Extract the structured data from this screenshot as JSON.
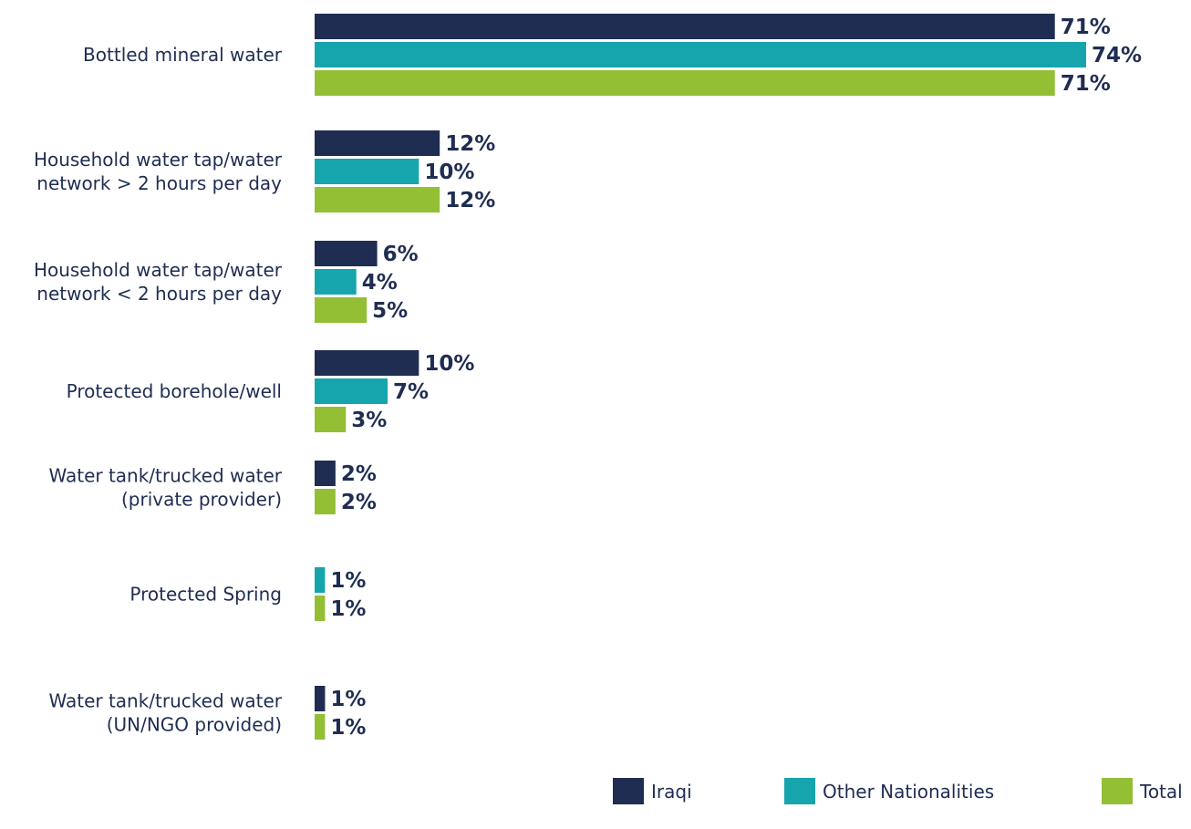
{
  "chart_data": {
    "type": "bar",
    "orientation": "horizontal",
    "categories": [
      [
        "Bottled mineral water"
      ],
      [
        "Household water tap/water",
        "network > 2 hours per day"
      ],
      [
        "Household water tap/water",
        "network < 2 hours per day"
      ],
      [
        "Protected borehole/well"
      ],
      [
        "Water tank/trucked water",
        "(private provider)"
      ],
      [
        "Protected Spring"
      ],
      [
        "Water tank/trucked water",
        "(UN/NGO provided)"
      ]
    ],
    "series": [
      {
        "name": "Iraqi",
        "color": "#1f2d52",
        "values": [
          71,
          12,
          6,
          10,
          2,
          null,
          1
        ],
        "labels": [
          "71%",
          "12%",
          "6%",
          "10%",
          "2%",
          null,
          "1%"
        ]
      },
      {
        "name": "Other Nationalities",
        "color": "#17a5ad",
        "values": [
          74,
          10,
          4,
          7,
          null,
          1,
          null
        ],
        "labels": [
          "74%",
          "10%",
          "4%",
          "7%",
          null,
          "1%",
          null
        ]
      },
      {
        "name": "Total",
        "color": "#93bf35",
        "values": [
          71,
          12,
          5,
          3,
          2,
          1,
          1
        ],
        "labels": [
          "71%",
          "12%",
          "5%",
          "3%",
          "2%",
          "1%",
          "1%"
        ]
      }
    ],
    "xlim": [
      0,
      74
    ],
    "grid": false,
    "legend_position": "bottom-right"
  }
}
